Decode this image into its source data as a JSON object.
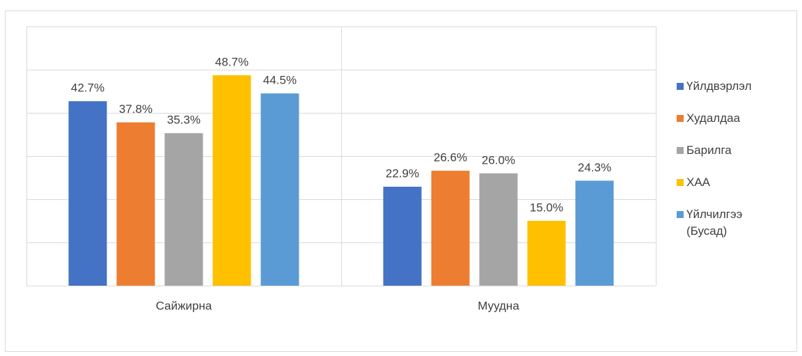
{
  "chart_data": {
    "type": "bar",
    "categories": [
      "Сайжирна",
      "Муудна"
    ],
    "series": [
      {
        "name": "Үйлдвэрлэл",
        "color": "#4472c4",
        "values": [
          42.7,
          22.9
        ],
        "value_labels": [
          "42.7%",
          "22.9%"
        ]
      },
      {
        "name": "Худалдаа",
        "color": "#ed7d31",
        "values": [
          37.8,
          26.6
        ],
        "value_labels": [
          "37.8%",
          "26.6%"
        ]
      },
      {
        "name": "Барилга",
        "color": "#a5a5a5",
        "values": [
          35.3,
          26.0
        ],
        "value_labels": [
          "35.3%",
          "26.0%"
        ]
      },
      {
        "name": "ХАА",
        "color": "#ffc000",
        "values": [
          48.7,
          15.0
        ],
        "value_labels": [
          "48.7%",
          "15.0%"
        ]
      },
      {
        "name": "Үйлчилгээ (Бусад)",
        "color": "#5b9bd5",
        "values": [
          44.5,
          24.3
        ],
        "value_labels": [
          "44.5%",
          "24.3%"
        ]
      }
    ],
    "ylim": [
      0,
      60
    ],
    "yticks": [
      0,
      10,
      20,
      30,
      40,
      50,
      60
    ],
    "grid": true,
    "legend": "right"
  }
}
